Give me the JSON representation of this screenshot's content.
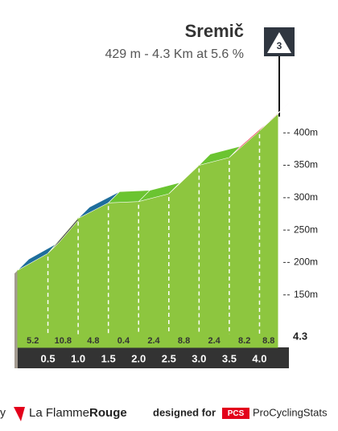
{
  "chart_data": {
    "type": "climb-profile",
    "title": "Sremič",
    "subtitle": "429 m - 4.3 Km at 5.6 %",
    "category": "3",
    "x": [
      0,
      0.5,
      {
        "value": 1,
        "label": "1.0"
      },
      1.5,
      {
        "value": 2,
        "label": "2.0"
      },
      2.5,
      {
        "value": 3,
        "label": "3.0"
      },
      3.5,
      {
        "value": 4,
        "label": "4.0"
      },
      4.3
    ],
    "elevations": [
      188,
      214,
      268,
      292,
      294,
      306,
      350,
      362,
      403,
      429
    ],
    "gradients": [
      5.2,
      10.8,
      4.8,
      0.4,
      2.4,
      8.8,
      2.4,
      8.2,
      8.8
    ],
    "segment_colors": [
      "#1f6e9c",
      "#111111",
      "#1f6e9c",
      "#6bc431",
      "#6bc431",
      "#e8203a",
      "#6bc431",
      "#e8203a",
      "#e8203a"
    ],
    "fill_color": "#8dc63f",
    "xlim": [
      0,
      4.3
    ],
    "ylim": [
      100,
      440
    ],
    "yticks": [
      {
        "value": 150,
        "label": "150m"
      },
      {
        "value": 200,
        "label": "200m"
      },
      {
        "value": 250,
        "label": "250m"
      },
      {
        "value": 300,
        "label": "300m"
      },
      {
        "value": 350,
        "label": "350m"
      },
      {
        "value": 400,
        "label": "400m"
      }
    ]
  },
  "footer": {
    "left_cut": "y",
    "brand_a": "La Flamme",
    "brand_b": "Rouge",
    "designed": "designed for",
    "pcs": "PCS",
    "site": "ProCyclingStats"
  }
}
